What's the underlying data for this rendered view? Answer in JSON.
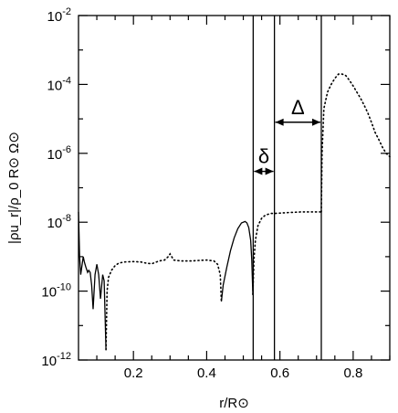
{
  "chart_data": {
    "type": "line",
    "title": "",
    "xlabel": "r/R⊙",
    "ylabel": "|ρu_r|/ρ_0 R⊙ Ω⊙",
    "xlim": [
      0.05,
      0.9
    ],
    "ylim": [
      1e-12,
      0.01
    ],
    "yscale": "log",
    "grid": false,
    "x_ticks": [
      {
        "value": 0.2,
        "label": "0.2"
      },
      {
        "value": 0.4,
        "label": "0.4"
      },
      {
        "value": 0.6,
        "label": "0.6"
      },
      {
        "value": 0.8,
        "label": "0.8"
      }
    ],
    "y_ticks": [
      {
        "exp": -12,
        "base": "10",
        "sup": "-12"
      },
      {
        "exp": -10,
        "base": "10",
        "sup": "-10"
      },
      {
        "exp": -8,
        "base": "10",
        "sup": "-8"
      },
      {
        "exp": -6,
        "base": "10",
        "sup": "-6"
      },
      {
        "exp": -4,
        "base": "10",
        "sup": "-4"
      },
      {
        "exp": -2,
        "base": "10",
        "sup": "-2"
      }
    ],
    "vertical_lines": [
      0.527,
      0.585,
      0.713
    ],
    "annotations": [
      {
        "text": "δ",
        "from": 0.527,
        "to": 0.585,
        "at_y": 3e-07
      },
      {
        "text": "Δ",
        "from": 0.585,
        "to": 0.713,
        "at_y": 8e-06
      }
    ],
    "series": [
      {
        "style": "solid",
        "segments": [
          [
            [
              0.05,
              2e-08
            ],
            [
              0.053,
              1e-09
            ],
            [
              0.056,
              3e-10
            ],
            [
              0.06,
              6e-10
            ],
            [
              0.063,
              1e-09
            ],
            [
              0.066,
              7e-10
            ],
            [
              0.07,
              5e-10
            ],
            [
              0.075,
              3.5e-10
            ],
            [
              0.078,
              4e-10
            ],
            [
              0.082,
              3.5e-10
            ],
            [
              0.086,
              1.5e-10
            ],
            [
              0.09,
              3e-11
            ],
            [
              0.095,
              3e-10
            ],
            [
              0.1,
              6e-10
            ],
            [
              0.105,
              3e-10
            ],
            [
              0.11,
              6e-11
            ],
            [
              0.116,
              3e-10
            ],
            [
              0.12,
              2e-10
            ],
            [
              0.125,
              2e-12
            ]
          ],
          [
            [
              0.44,
              5e-11
            ],
            [
              0.445,
              1.5e-10
            ],
            [
              0.455,
              5e-10
            ],
            [
              0.465,
              1.5e-09
            ],
            [
              0.475,
              3.5e-09
            ],
            [
              0.485,
              6.5e-09
            ],
            [
              0.495,
              9.5e-09
            ],
            [
              0.505,
              1.05e-08
            ],
            [
              0.51,
              9.5e-09
            ],
            [
              0.515,
              7e-09
            ],
            [
              0.52,
              3e-09
            ],
            [
              0.523,
              8e-10
            ],
            [
              0.526,
              8e-11
            ]
          ]
        ]
      },
      {
        "style": "dotted",
        "segments": [
          [
            [
              0.125,
              2e-12
            ],
            [
              0.128,
              1e-10
            ],
            [
              0.132,
              2.5e-10
            ],
            [
              0.14,
              4e-10
            ],
            [
              0.15,
              5.5e-10
            ],
            [
              0.16,
              6.5e-10
            ],
            [
              0.175,
              7e-10
            ],
            [
              0.2,
              7.2e-10
            ],
            [
              0.22,
              7e-10
            ],
            [
              0.235,
              6.5e-10
            ],
            [
              0.25,
              6.2e-10
            ],
            [
              0.27,
              7.5e-10
            ],
            [
              0.285,
              8e-10
            ],
            [
              0.295,
              1e-09
            ],
            [
              0.3,
              1.2e-09
            ],
            [
              0.31,
              8e-10
            ],
            [
              0.33,
              7.5e-10
            ],
            [
              0.36,
              7.5e-10
            ],
            [
              0.38,
              7.8e-10
            ],
            [
              0.4,
              8e-10
            ],
            [
              0.42,
              7.5e-10
            ],
            [
              0.43,
              6e-10
            ],
            [
              0.437,
              3e-10
            ],
            [
              0.44,
              5e-11
            ]
          ],
          [
            [
              0.526,
              8e-11
            ],
            [
              0.529,
              8e-10
            ],
            [
              0.533,
              3e-09
            ],
            [
              0.54,
              8e-09
            ],
            [
              0.55,
              1.3e-08
            ],
            [
              0.56,
              1.6e-08
            ],
            [
              0.575,
              1.8e-08
            ],
            [
              0.585,
              1.8e-08
            ],
            [
              0.62,
              1.9e-08
            ],
            [
              0.66,
              2e-08
            ],
            [
              0.713,
              2e-08
            ]
          ],
          [
            [
              0.713,
              2e-08
            ],
            [
              0.715,
              1e-06
            ],
            [
              0.72,
              2e-05
            ],
            [
              0.73,
              6e-05
            ],
            [
              0.74,
              0.0001
            ],
            [
              0.75,
              0.00015
            ],
            [
              0.76,
              0.0002
            ],
            [
              0.77,
              0.0002
            ],
            [
              0.78,
              0.00018
            ],
            [
              0.79,
              0.00013
            ],
            [
              0.8,
              9e-05
            ],
            [
              0.81,
              6e-05
            ],
            [
              0.82,
              4e-05
            ],
            [
              0.83,
              2.5e-05
            ],
            [
              0.84,
              1.5e-05
            ],
            [
              0.85,
              8e-06
            ],
            [
              0.86,
              4e-06
            ],
            [
              0.87,
              2.5e-06
            ],
            [
              0.88,
              1.5e-06
            ],
            [
              0.89,
              1e-06
            ],
            [
              0.9,
              8e-07
            ]
          ]
        ]
      }
    ]
  }
}
